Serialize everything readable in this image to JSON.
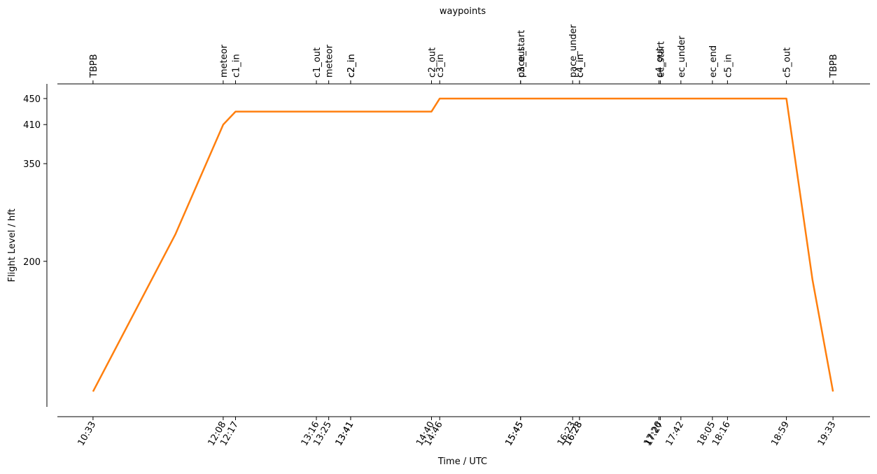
{
  "chart_data": {
    "type": "line",
    "xlabel": "Time / UTC",
    "ylabel": "Flight Level / hft",
    "x": [
      "10:33",
      "11:33",
      "12:08",
      "12:17",
      "14:40",
      "14:46",
      "18:59",
      "19:18",
      "19:33"
    ],
    "values": [
      0,
      241,
      410,
      430,
      430,
      450,
      450,
      172,
      0
    ],
    "color": "#ff7f0e",
    "xlim": [
      "10:07",
      "20:00"
    ],
    "xticks": [
      "10:33",
      "12:08",
      "12:17",
      "13:16",
      "13:25",
      "13:41",
      "13:41",
      "14:40",
      "14:46",
      "15:45",
      "15:45",
      "16:23",
      "16:28",
      "16:28",
      "17:26",
      "17:27",
      "17:42",
      "18:05",
      "18:16",
      "18:59",
      "19:33"
    ],
    "ylim": [
      -23.6,
      472.5
    ],
    "yticks": [
      200,
      350,
      410,
      450
    ],
    "top_axis": {
      "label": "waypoints",
      "tick_labels": [
        "TBPB",
        "meteor",
        "c1_in",
        "c1_out",
        "meteor",
        "c2_in",
        "c2_in",
        "c2_out",
        "c3_in",
        "pace_start",
        "c3_out",
        "pace_under",
        "c4_in",
        "c4_in",
        "c4_out",
        "ec_start",
        "ec_under",
        "ec_end",
        "c5_in",
        "c5_out",
        "TBPB"
      ]
    }
  }
}
